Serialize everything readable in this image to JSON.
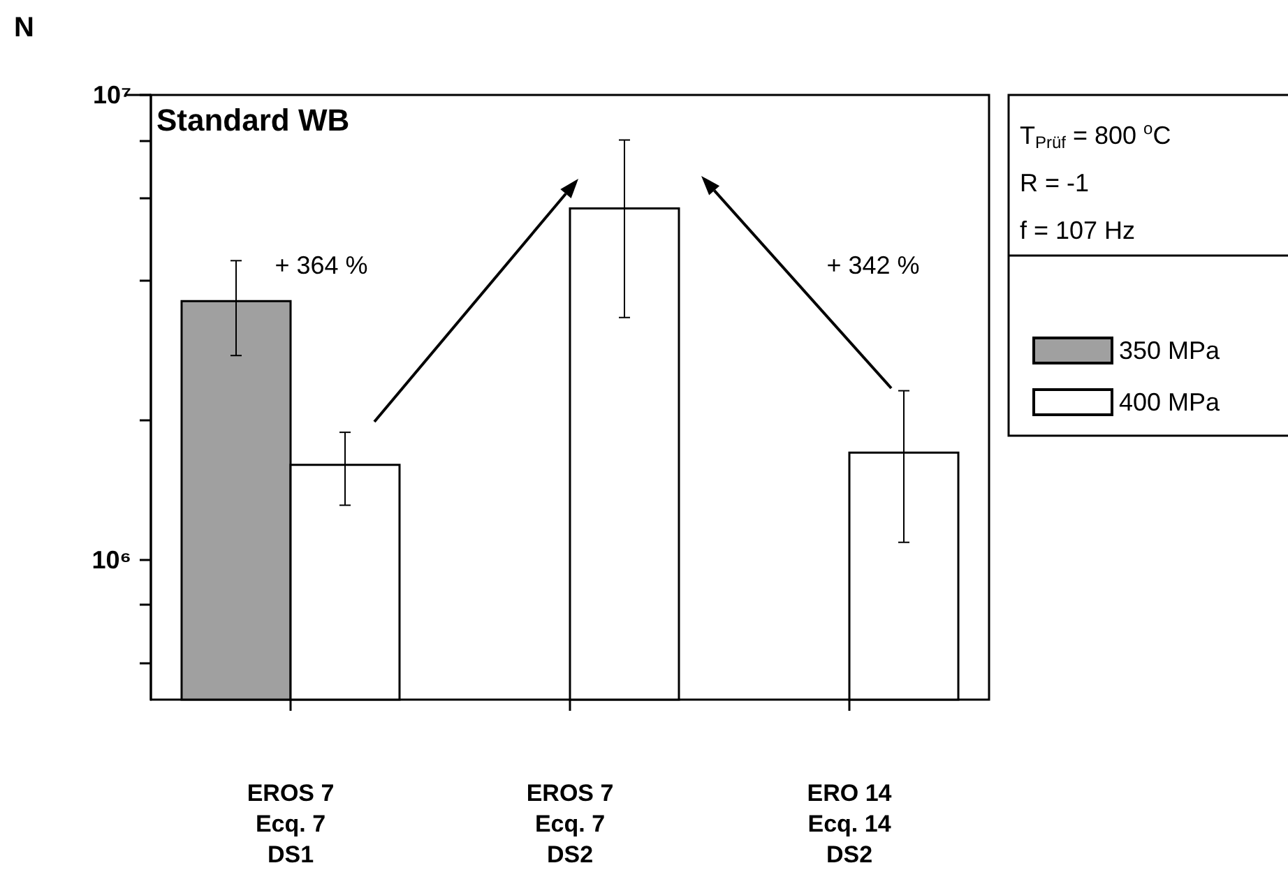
{
  "chart_data": {
    "type": "bar",
    "title": "Standard WB",
    "ylabel": "N",
    "categories": [
      "EROS 7\nEcq. 7\nDS1",
      "EROS 7\nEcq. 7\nDS2",
      "ERO 14\nEcq. 14\nDS2"
    ],
    "series": [
      {
        "name": "350 MPa",
        "color": "#a0a0a0",
        "values": [
          3600000,
          null,
          null
        ],
        "errors": [
          [
            2750000,
            4400000
          ],
          null,
          null
        ]
      },
      {
        "name": "400 MPa",
        "color": "#ffffff",
        "values": [
          1600000,
          5700000,
          1700000
        ],
        "errors": [
          [
            1310000,
            1880000
          ],
          [
            3320000,
            8000000
          ],
          [
            1090000,
            2310000
          ]
        ]
      }
    ],
    "log": true,
    "ylim": [
      500000,
      10000000
    ],
    "yticks": [
      {
        "value": 600000,
        "label": null
      },
      {
        "value": 800000,
        "label": null
      },
      {
        "value": 1000000,
        "label": "10⁶"
      },
      {
        "value": 2000000,
        "label": null
      },
      {
        "value": 4000000,
        "label": null
      },
      {
        "value": 6000000,
        "label": null
      },
      {
        "value": 8000000,
        "label": null
      },
      {
        "value": 10000000,
        "label": "10⁷"
      }
    ],
    "grid": false,
    "legend": "right",
    "annotations": [
      "+ 364 %",
      "+ 342 %",
      "T$_{Prüf}$ = 800 $^{o}$C",
      "R = -1",
      "f = 107 Hz"
    ]
  }
}
